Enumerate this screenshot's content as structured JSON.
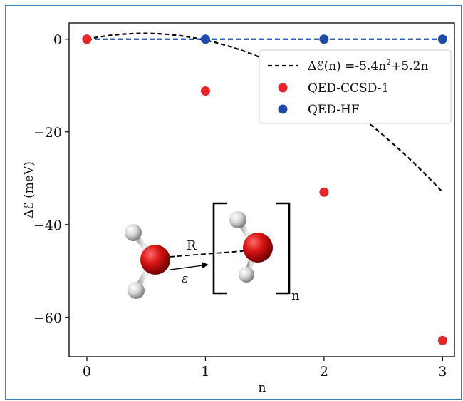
{
  "chart_data": {
    "type": "scatter",
    "xlabel": "n",
    "ylabel": "ΔℰΔ (meV)",
    "ylabel_text": "Δℰ (meV)",
    "xlim": [
      -0.15,
      3.1
    ],
    "ylim": [
      -68.5,
      3.5
    ],
    "x_ticks": [
      0,
      1,
      2,
      3
    ],
    "x_tick_labels": [
      "0",
      "1",
      "2",
      "3"
    ],
    "y_ticks": [
      0,
      -20,
      -40,
      -60
    ],
    "y_tick_labels": [
      "0",
      "−20",
      "−40",
      "−60"
    ],
    "grid": false,
    "legend_position": "top-right",
    "series": [
      {
        "name": "Δℰ(n) =-5.4n²+5.2n",
        "kind": "fit-line",
        "color": "#000000",
        "style": "dashed",
        "formula": {
          "a": -5.4,
          "b": 5.2
        }
      },
      {
        "name": "QED-CCSD-1",
        "kind": "points",
        "color": "#e8242b",
        "x": [
          0,
          1,
          2,
          3
        ],
        "y": [
          0,
          -11.2,
          -33,
          -65
        ]
      },
      {
        "name": "QED-HF",
        "kind": "points",
        "color": "#1f4aa8",
        "style": "dashed",
        "x": [
          0,
          1,
          2,
          3
        ],
        "y": [
          0,
          0,
          0,
          0
        ]
      }
    ],
    "legend": {
      "fit_prefix": "Δℰ(n) =-5.4n",
      "fit_sup": "2",
      "fit_suffix": "+5.2n",
      "ccsd": "QED-CCSD-1",
      "hf": "QED-HF"
    },
    "inset": {
      "distance_label": "R",
      "field_label": "ε",
      "subscript": "n"
    }
  }
}
